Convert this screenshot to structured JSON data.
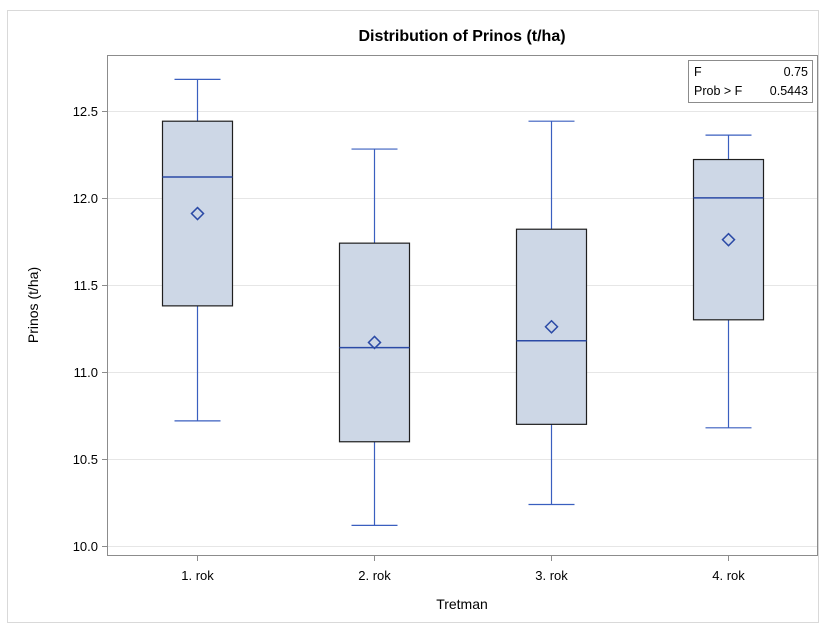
{
  "chart_data": {
    "type": "box",
    "title": "Distribution of Prinos (t/ha)",
    "xlabel": "Tretman",
    "ylabel": "Prinos (t/ha)",
    "ylim": [
      9.95,
      12.82
    ],
    "yticks": [
      10.0,
      10.5,
      11.0,
      11.5,
      12.0,
      12.5
    ],
    "ytick_labels": [
      "10.0",
      "10.5",
      "11.0",
      "11.5",
      "12.0",
      "12.5"
    ],
    "grid": true,
    "categories": [
      "1. rok",
      "2. rok",
      "3. rok",
      "4. rok"
    ],
    "boxes": [
      {
        "min": 10.72,
        "q1": 11.38,
        "median": 12.12,
        "q3": 12.44,
        "max": 12.68,
        "mean": 11.91
      },
      {
        "min": 10.12,
        "q1": 10.6,
        "median": 11.14,
        "q3": 11.74,
        "max": 12.28,
        "mean": 11.17
      },
      {
        "min": 10.24,
        "q1": 10.7,
        "median": 11.18,
        "q3": 11.82,
        "max": 12.44,
        "mean": 11.26
      },
      {
        "min": 10.68,
        "q1": 11.3,
        "median": 12.0,
        "q3": 12.22,
        "max": 12.36,
        "mean": 11.76
      }
    ],
    "stats_box": {
      "rows": [
        {
          "label": "F",
          "value": "0.75"
        },
        {
          "label": "Prob > F",
          "value": "0.5443"
        }
      ]
    },
    "colors": {
      "box_fill": "#cdd7e6",
      "box_stroke": "#1f1f1f",
      "whisker": "#3a5fbf",
      "median": "#2b4aa6",
      "mean_marker": "#2b4aa6",
      "grid": "#e6e6e6",
      "frame": "#8c8c8c"
    }
  }
}
